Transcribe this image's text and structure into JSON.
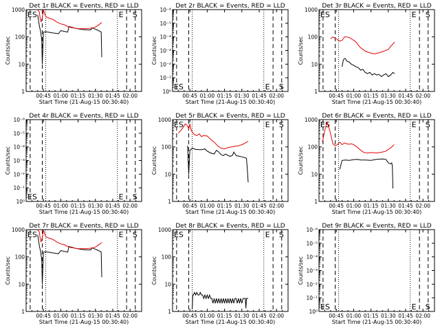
{
  "colors": {
    "events": "#000000",
    "lld": "#e00000",
    "axes": "#000000",
    "background": "#ffffff"
  },
  "shared": {
    "ylabel": "Counts/sec",
    "xlabel": "Start Time (21-Aug-15 00:30:40)",
    "x_unit": "minutes after 00:30",
    "x_range": [
      0,
      100
    ],
    "x_ticks": [
      {
        "label": "00:45",
        "value": 15
      },
      {
        "label": "01:00",
        "value": 30
      },
      {
        "label": "01:15",
        "value": 45
      },
      {
        "label": "01:30",
        "value": 60
      },
      {
        "label": "01:45",
        "value": 75
      },
      {
        "label": "02:00",
        "value": 90
      }
    ],
    "y_scale": "log",
    "y_range": [
      1,
      1000
    ],
    "y_tick_values": [
      1,
      10,
      100,
      1000
    ],
    "y_tick_labels_normal": [
      "1",
      "10",
      "100",
      "1000"
    ],
    "y_tick_labels_empty": [
      "10⁰",
      "10⁻¹",
      "10⁻²",
      "10⁻³",
      "10⁻⁴",
      "10⁻⁵",
      "10⁻⁶"
    ],
    "markers": {
      "dashed_x": [
        3.5,
        14,
        87,
        94.5
      ],
      "dotted_x": [
        17,
        79
      ],
      "glyph_label_x": [
        3.5,
        82.5,
        94.5
      ],
      "glyph_labels": [
        "ES",
        "E",
        "S"
      ]
    }
  },
  "chart_data": [
    {
      "type": "line",
      "title": "Det 1r BLACK = Events, RED = LLD",
      "empty": false,
      "glyph_position": "top",
      "series": [
        {
          "name": "Events",
          "color": "#000000",
          "x": [
            10,
            11.5,
            12.5,
            13.5,
            14,
            15,
            17,
            19,
            21,
            23,
            26,
            28,
            30,
            33,
            36,
            37,
            39,
            42,
            46,
            50,
            53,
            56,
            57,
            59,
            62,
            64,
            65,
            65.5
          ],
          "y": [
            650,
            250,
            160,
            80,
            10,
            150,
            155,
            150,
            145,
            140,
            135,
            130,
            170,
            160,
            150,
            240,
            230,
            210,
            195,
            185,
            180,
            180,
            215,
            200,
            175,
            160,
            150,
            18
          ]
        },
        {
          "name": "LLD",
          "color": "#e00000",
          "x": [
            10,
            11.5,
            12,
            13,
            14,
            15,
            16,
            17,
            19,
            21,
            23,
            25,
            27,
            30,
            33,
            36,
            39,
            42,
            45,
            50,
            55,
            58,
            60,
            62,
            64,
            65.5
          ],
          "y": [
            1000,
            800,
            520,
            350,
            500,
            1000,
            700,
            560,
            500,
            470,
            440,
            390,
            340,
            300,
            280,
            240,
            220,
            210,
            200,
            200,
            205,
            215,
            230,
            260,
            300,
            340
          ]
        }
      ]
    },
    {
      "type": "line",
      "title": "Det 2r BLACK = Events, RED = LLD",
      "empty": true,
      "glyph_position": "bottom",
      "series": []
    },
    {
      "type": "line",
      "title": "Det 3r BLACK = Events, RED = LLD",
      "empty": false,
      "glyph_position": "top",
      "series": [
        {
          "name": "Events",
          "color": "#000000",
          "x": [
            20,
            21,
            22,
            23,
            24,
            26,
            28,
            30,
            32,
            34,
            36,
            38,
            40,
            42,
            44,
            46,
            48,
            50,
            52,
            54,
            56,
            58,
            60,
            62,
            64,
            65.5
          ],
          "y": [
            8,
            14,
            16,
            16,
            13,
            12,
            10,
            9,
            8,
            7.5,
            6,
            6.5,
            5,
            4.5,
            5,
            4,
            4.5,
            4,
            4.2,
            3.5,
            4,
            4.5,
            3.5,
            4,
            5,
            4.5
          ]
        },
        {
          "name": "LLD",
          "color": "#e00000",
          "x": [
            10,
            12,
            14,
            16,
            18,
            20,
            22,
            24,
            26,
            28,
            30,
            32,
            34,
            36,
            38,
            40,
            42,
            44,
            46,
            48,
            50,
            52,
            54,
            56,
            58,
            60,
            62,
            64,
            65.5
          ],
          "y": [
            85,
            100,
            90,
            80,
            70,
            75,
            100,
            100,
            95,
            85,
            75,
            65,
            50,
            40,
            35,
            30,
            28,
            26,
            25,
            24,
            25,
            26,
            28,
            30,
            32,
            35,
            45,
            55,
            65
          ]
        }
      ]
    },
    {
      "type": "line",
      "title": "Det 4r BLACK = Events, RED = LLD",
      "empty": true,
      "glyph_position": "bottom",
      "series": []
    },
    {
      "type": "line",
      "title": "Det 5r BLACK = Events, RED = LLD",
      "empty": false,
      "glyph_position": "top",
      "series": [
        {
          "name": "Events",
          "color": "#000000",
          "x": [
            13,
            14,
            15,
            16,
            17,
            19,
            20,
            22,
            24,
            26,
            28,
            30,
            33,
            36,
            38,
            40,
            42,
            44,
            46,
            48,
            50,
            52,
            53,
            55,
            58,
            60,
            63,
            64,
            64.5,
            65.5
          ],
          "y": [
            110,
            10,
            75,
            80,
            90,
            85,
            80,
            80,
            78,
            80,
            85,
            70,
            60,
            55,
            75,
            65,
            52,
            48,
            55,
            48,
            45,
            50,
            65,
            48,
            45,
            43,
            40,
            38,
            20,
            5
          ]
        },
        {
          "name": "LLD",
          "color": "#e00000",
          "x": [
            5,
            7,
            9,
            11,
            13,
            14,
            15,
            16,
            17,
            19,
            21,
            23,
            25,
            27,
            30,
            33,
            36,
            39,
            42,
            45,
            48,
            51,
            54,
            57,
            60,
            63,
            65.5
          ],
          "y": [
            320,
            400,
            500,
            700,
            600,
            450,
            700,
            420,
            350,
            280,
            260,
            300,
            240,
            260,
            250,
            190,
            150,
            110,
            90,
            85,
            95,
            100,
            105,
            110,
            120,
            140,
            160
          ]
        }
      ]
    },
    {
      "type": "line",
      "title": "Det 6r BLACK = Events, RED = LLD",
      "empty": false,
      "glyph_position": "top",
      "series": [
        {
          "name": "Events",
          "color": "#000000",
          "x": [
            18,
            20,
            23,
            26,
            30,
            33,
            36,
            40,
            45,
            50,
            55,
            58,
            60,
            62,
            63,
            63.5,
            64
          ],
          "y": [
            15,
            32,
            33,
            32,
            34,
            35,
            33,
            33,
            32,
            35,
            36,
            35,
            26,
            24,
            26,
            20,
            3
          ]
        },
        {
          "name": "LLD",
          "color": "#e00000",
          "x": [
            3,
            5,
            7,
            9,
            10,
            11,
            12,
            14,
            16,
            18,
            20,
            22,
            24,
            26,
            28,
            30,
            33,
            36,
            39,
            42,
            45,
            50,
            55,
            58,
            60,
            63,
            65
          ],
          "y": [
            150,
            400,
            800,
            450,
            300,
            200,
            130,
            110,
            120,
            150,
            120,
            140,
            130,
            125,
            130,
            120,
            100,
            75,
            62,
            60,
            62,
            60,
            65,
            70,
            80,
            100,
            120
          ]
        }
      ]
    },
    {
      "type": "line",
      "title": "Det 7r BLACK = Events, RED = LLD",
      "empty": false,
      "glyph_position": "top",
      "series": [
        {
          "name": "Events",
          "color": "#000000",
          "x": [
            10,
            11.5,
            12.5,
            13.5,
            14,
            15,
            17,
            19,
            21,
            23,
            26,
            28,
            30,
            33,
            36,
            37,
            39,
            42,
            46,
            50,
            53,
            56,
            57,
            59,
            62,
            64,
            65,
            65.5
          ],
          "y": [
            650,
            250,
            160,
            80,
            10,
            150,
            155,
            150,
            145,
            140,
            135,
            130,
            170,
            160,
            150,
            240,
            230,
            210,
            195,
            185,
            180,
            180,
            215,
            200,
            175,
            160,
            150,
            18
          ]
        },
        {
          "name": "LLD",
          "color": "#e00000",
          "x": [
            10,
            11.5,
            12,
            13,
            14,
            15,
            16,
            17,
            19,
            21,
            23,
            25,
            27,
            30,
            33,
            36,
            39,
            42,
            45,
            50,
            55,
            58,
            60,
            62,
            64,
            65.5
          ],
          "y": [
            1000,
            800,
            520,
            350,
            500,
            1000,
            700,
            560,
            500,
            470,
            440,
            390,
            340,
            300,
            280,
            240,
            220,
            210,
            200,
            200,
            205,
            215,
            230,
            260,
            300,
            340
          ]
        }
      ]
    },
    {
      "type": "line",
      "title": "Det 8r BLACK = Events, RED = LLD",
      "empty": false,
      "glyph_position": "top",
      "series": [
        {
          "name": "Events",
          "color": "#000000",
          "x": [
            17,
            17.5,
            18,
            19,
            20,
            21,
            22,
            23,
            24,
            25,
            26,
            27,
            28,
            29,
            30,
            31,
            32,
            33,
            34,
            35,
            36,
            37,
            38,
            39,
            40,
            41,
            42,
            43,
            44,
            45,
            46,
            47,
            48,
            49,
            50,
            51,
            52,
            53,
            54,
            55,
            56,
            57,
            58,
            59,
            60,
            61,
            62,
            63,
            63.5,
            64,
            65.5
          ],
          "y": [
            1.2,
            4,
            4,
            5,
            4,
            5,
            4,
            4,
            5,
            4,
            4,
            3,
            4,
            3,
            4,
            3,
            4,
            3,
            3,
            2,
            3,
            2,
            3,
            2,
            3,
            2,
            3,
            2,
            3,
            2,
            3,
            2,
            3,
            2,
            3,
            2,
            3,
            2,
            3,
            3,
            2,
            3,
            2,
            3,
            2,
            3,
            3,
            3,
            1.3,
            3,
            3
          ]
        }
      ]
    },
    {
      "type": "line",
      "title": "Det 9r BLACK = Events, RED = LLD",
      "empty": true,
      "glyph_position": "bottom",
      "series": []
    }
  ]
}
